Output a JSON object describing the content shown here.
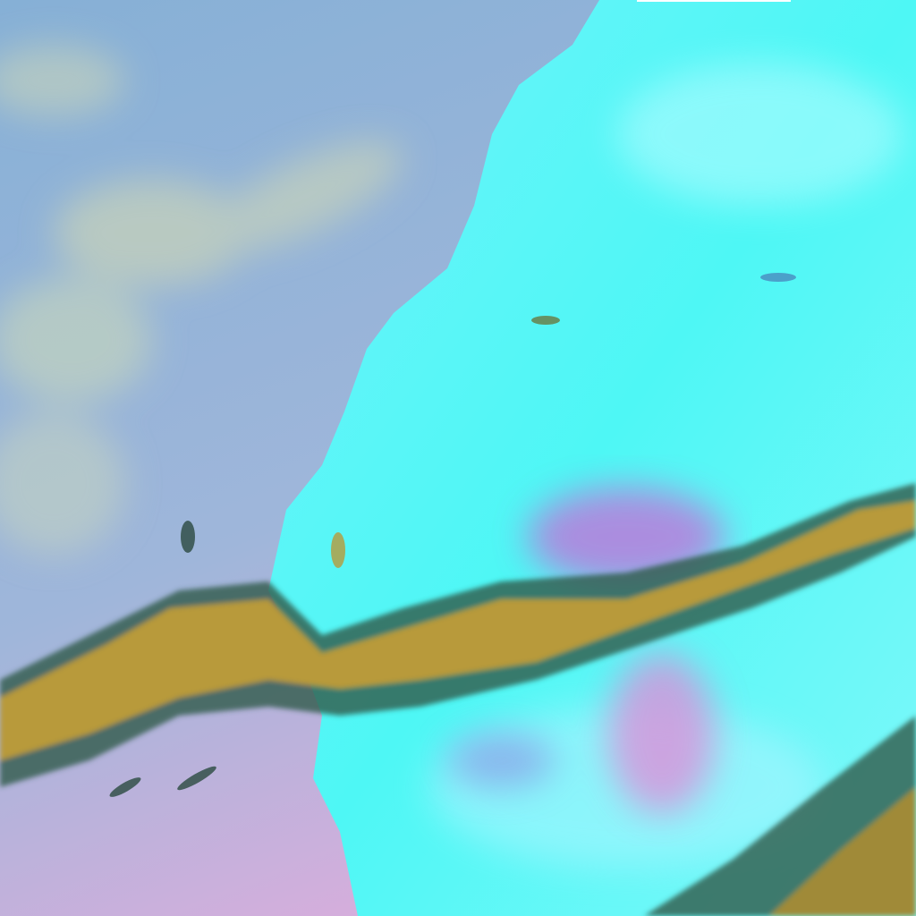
{
  "image": {
    "kind": "false-color satellite imagery",
    "colors": {
      "ocean": "#8fb4d6",
      "ocean_south": "#c9b3d8",
      "land": "#4ff5f5",
      "land_bright": "#9ffcff",
      "cloud_band": "#b89a3a",
      "cloud_edge": "#2f5a4a",
      "pink_patch": "#e08ad8",
      "swirl": "#c8d8b8"
    }
  }
}
